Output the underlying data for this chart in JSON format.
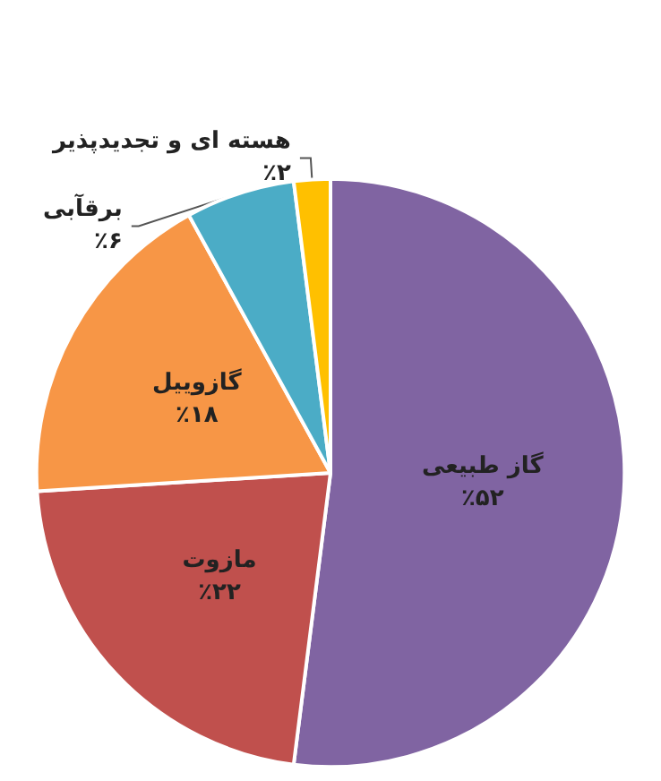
{
  "chart_data": {
    "type": "pie",
    "categories": [
      "گاز طبیعی",
      "مازوت",
      "گازوییل",
      "برقآبی",
      "هسته ای و تجدیدپذیر"
    ],
    "values": [
      52,
      22,
      18,
      6,
      2
    ],
    "colors": [
      "#8064a2",
      "#c0504d",
      "#f79646",
      "#4bacc6",
      "#ffc000"
    ],
    "value_labels": [
      "٪۵۲",
      "٪۲۲",
      "٪۱۸",
      "٪۶",
      "٪۲"
    ],
    "legend": false
  }
}
